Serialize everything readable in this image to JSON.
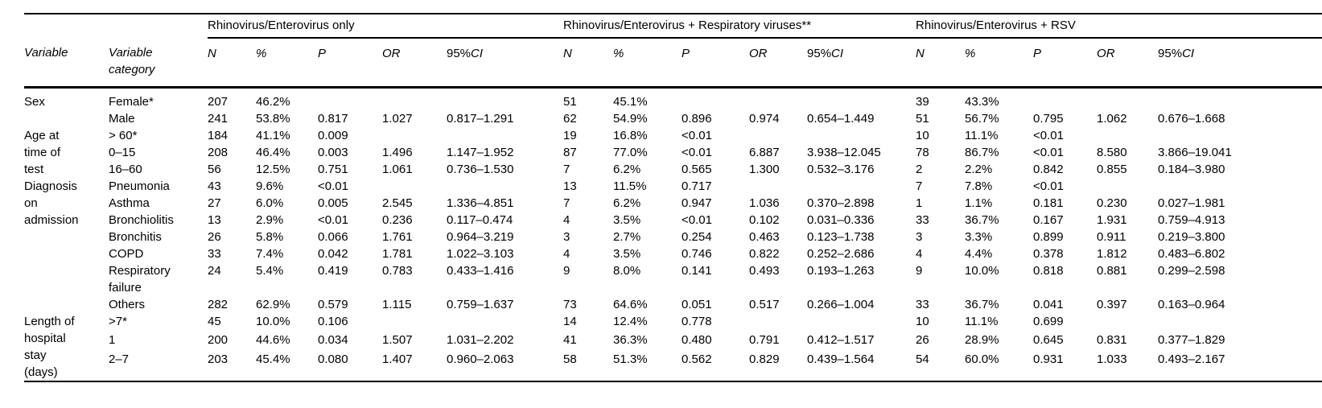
{
  "table": {
    "group_headers": [
      "Rhinovirus/Enterovirus only",
      "Rhinovirus/Enterovirus + Respiratory viruses**",
      "Rhinovirus/Enterovirus + RSV"
    ],
    "col_headers": {
      "variable": "Variable",
      "category": "Variable\ncategory",
      "stats": [
        "N",
        "%",
        "P",
        "OR",
        "95%CI"
      ]
    },
    "rows": [
      {
        "variable": "Sex",
        "var_span": 2,
        "category": "Female*",
        "groups": [
          [
            "207",
            "46.2%",
            "",
            "",
            ""
          ],
          [
            "51",
            "45.1%",
            "",
            "",
            ""
          ],
          [
            "39",
            "43.3%",
            "",
            "",
            ""
          ]
        ]
      },
      {
        "category": "Male",
        "groups": [
          [
            "241",
            "53.8%",
            "0.817",
            "1.027",
            "0.817–1.291"
          ],
          [
            "62",
            "54.9%",
            "0.896",
            "0.974",
            "0.654–1.449"
          ],
          [
            "51",
            "56.7%",
            "0.795",
            "1.062",
            "0.676–1.668"
          ]
        ]
      },
      {
        "variable": "Age at\ntime of\ntest",
        "var_span": 3,
        "category": "> 60*",
        "groups": [
          [
            "184",
            "41.1%",
            "0.009",
            "",
            ""
          ],
          [
            "19",
            "16.8%",
            "<0.01",
            "",
            ""
          ],
          [
            "10",
            "11.1%",
            "<0.01",
            "",
            ""
          ]
        ]
      },
      {
        "category": "0–15",
        "groups": [
          [
            "208",
            "46.4%",
            "0.003",
            "1.496",
            "1.147–1.952"
          ],
          [
            "87",
            "77.0%",
            "<0.01",
            "6.887",
            "3.938–12.045"
          ],
          [
            "78",
            "86.7%",
            "<0.01",
            "8.580",
            "3.866–19.041"
          ]
        ]
      },
      {
        "category": "16–60",
        "groups": [
          [
            "56",
            "12.5%",
            "0.751",
            "1.061",
            "0.736–1.530"
          ],
          [
            "7",
            "6.2%",
            "0.565",
            "1.300",
            "0.532–3.176"
          ],
          [
            "2",
            "2.2%",
            "0.842",
            "0.855",
            "0.184–3.980"
          ]
        ]
      },
      {
        "variable": "Diagnosis\non\nadmission",
        "var_span": 7,
        "category": "Pneumonia",
        "groups": [
          [
            "43",
            "9.6%",
            "<0.01",
            "",
            ""
          ],
          [
            "13",
            "11.5%",
            "0.717",
            "",
            ""
          ],
          [
            "7",
            "7.8%",
            "<0.01",
            "",
            ""
          ]
        ]
      },
      {
        "category": "Asthma",
        "groups": [
          [
            "27",
            "6.0%",
            "0.005",
            "2.545",
            "1.336–4.851"
          ],
          [
            "7",
            "6.2%",
            "0.947",
            "1.036",
            "0.370–2.898"
          ],
          [
            "1",
            "1.1%",
            "0.181",
            "0.230",
            "0.027–1.981"
          ]
        ]
      },
      {
        "category": "Bronchiolitis",
        "groups": [
          [
            "13",
            "2.9%",
            "<0.01",
            "0.236",
            "0.117–0.474"
          ],
          [
            "4",
            "3.5%",
            "<0.01",
            "0.102",
            "0.031–0.336"
          ],
          [
            "33",
            "36.7%",
            "0.167",
            "1.931",
            "0.759–4.913"
          ]
        ]
      },
      {
        "category": "Bronchitis",
        "groups": [
          [
            "26",
            "5.8%",
            "0.066",
            "1.761",
            "0.964–3.219"
          ],
          [
            "3",
            "2.7%",
            "0.254",
            "0.463",
            "0.123–1.738"
          ],
          [
            "3",
            "3.3%",
            "0.899",
            "0.911",
            "0.219–3.800"
          ]
        ]
      },
      {
        "category": "COPD",
        "groups": [
          [
            "33",
            "7.4%",
            "0.042",
            "1.781",
            "1.022–3.103"
          ],
          [
            "4",
            "3.5%",
            "0.746",
            "0.822",
            "0.252–2.686"
          ],
          [
            "4",
            "4.4%",
            "0.378",
            "1.812",
            "0.483–6.802"
          ]
        ]
      },
      {
        "category": "Respiratory\nfailure",
        "groups": [
          [
            "24",
            "5.4%",
            "0.419",
            "0.783",
            "0.433–1.416"
          ],
          [
            "9",
            "8.0%",
            "0.141",
            "0.493",
            "0.193–1.263"
          ],
          [
            "9",
            "10.0%",
            "0.818",
            "0.881",
            "0.299–2.598"
          ]
        ]
      },
      {
        "category": "Others",
        "groups": [
          [
            "282",
            "62.9%",
            "0.579",
            "1.115",
            "0.759–1.637"
          ],
          [
            "73",
            "64.6%",
            "0.051",
            "0.517",
            "0.266–1.004"
          ],
          [
            "33",
            "36.7%",
            "0.041",
            "0.397",
            "0.163–0.964"
          ]
        ]
      },
      {
        "variable": "Length of\nhospital\nstay\n(days)",
        "var_span": 3,
        "category": ">7*",
        "groups": [
          [
            "45",
            "10.0%",
            "0.106",
            "",
            ""
          ],
          [
            "14",
            "12.4%",
            "0.778",
            "",
            ""
          ],
          [
            "10",
            "11.1%",
            "0.699",
            "",
            ""
          ]
        ]
      },
      {
        "category": "1",
        "groups": [
          [
            "200",
            "44.6%",
            "0.034",
            "1.507",
            "1.031–2.202"
          ],
          [
            "41",
            "36.3%",
            "0.480",
            "0.791",
            "0.412–1.517"
          ],
          [
            "26",
            "28.9%",
            "0.645",
            "0.831",
            "0.377–1.829"
          ]
        ]
      },
      {
        "category": "2–7",
        "groups": [
          [
            "203",
            "45.4%",
            "0.080",
            "1.407",
            "0.960–2.063"
          ],
          [
            "58",
            "51.3%",
            "0.562",
            "0.829",
            "0.439–1.564"
          ],
          [
            "54",
            "60.0%",
            "0.931",
            "1.033",
            "0.493–2.167"
          ]
        ]
      }
    ]
  }
}
